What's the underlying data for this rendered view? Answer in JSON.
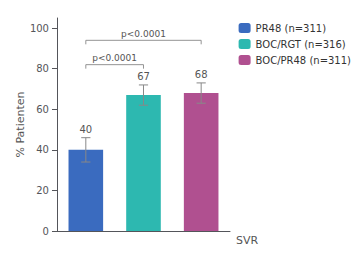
{
  "chart_data": {
    "type": "bar",
    "categories": [
      "PR48 (n=311)",
      "BOC/RGT (n=316)",
      "BOC/PR48 (n=311)"
    ],
    "values": [
      40,
      67,
      68
    ],
    "errors": [
      6,
      5,
      5
    ],
    "colors": [
      "#3a6bbf",
      "#2db8b0",
      "#b05090"
    ],
    "ylabel": "% Patienten",
    "xlabel": "SVR",
    "ylim": [
      0,
      105
    ],
    "yticks": [
      0,
      20,
      40,
      60,
      80,
      100
    ],
    "annotations": [
      {
        "text": "p<0.0001",
        "from": "PR48 (n=311)",
        "to": "BOC/RGT (n=316)",
        "y": 82
      },
      {
        "text": "p<0.0001",
        "from": "PR48 (n=311)",
        "to": "BOC/PR48 (n=311)",
        "y": 94
      }
    ],
    "data_labels": true,
    "tick_labels": "y",
    "legend": "right",
    "grid": false
  }
}
